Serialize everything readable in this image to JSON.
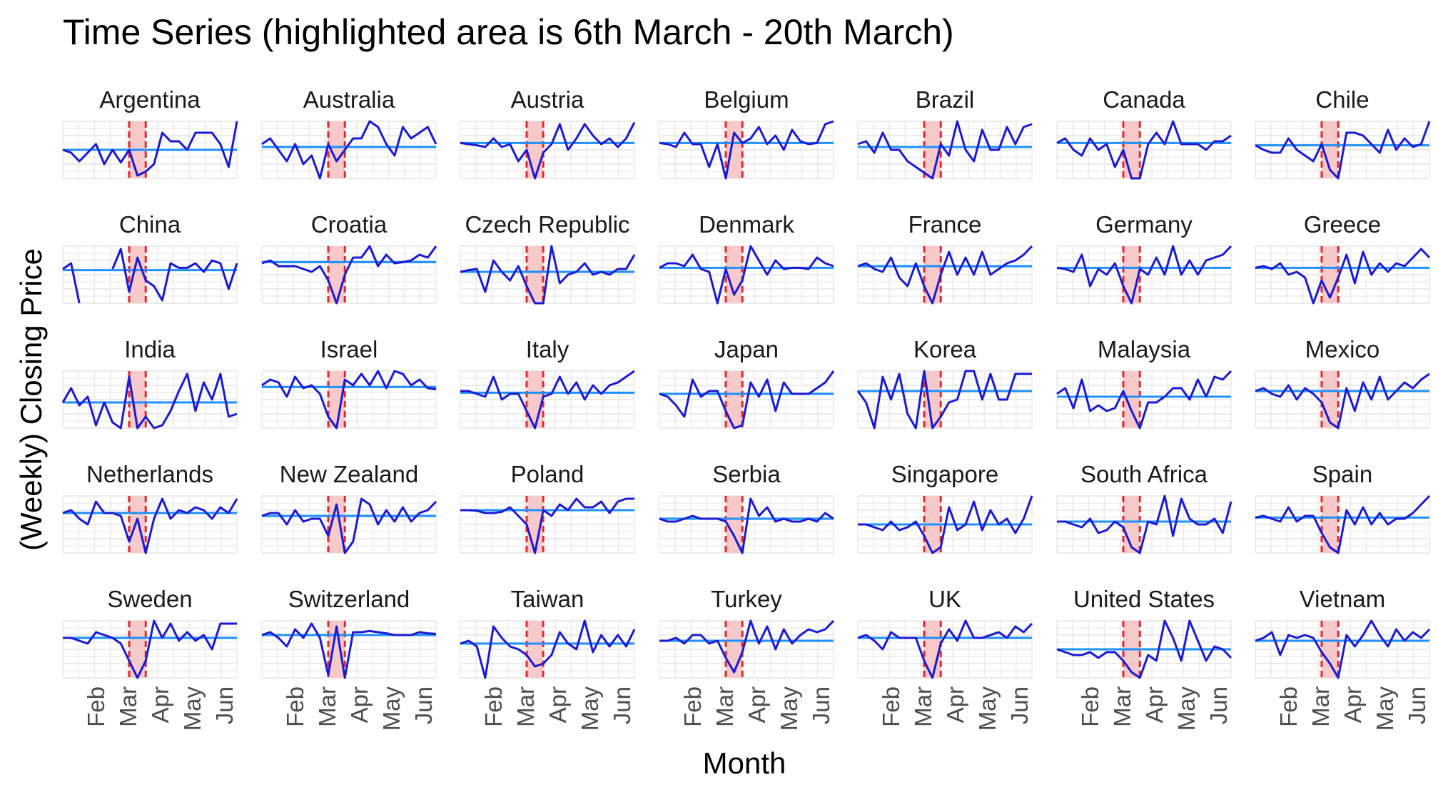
{
  "chart_data": {
    "type": "line",
    "title": "Time Series (highlighted area is 6th March - 20th March)",
    "xlabel": "Month",
    "ylabel": "(Weekly) Closing Price",
    "x_tick_labels": [
      "Feb",
      "Mar",
      "Apr",
      "May",
      "Jun"
    ],
    "x_range_weeks": [
      1,
      22
    ],
    "highlight": {
      "start": "6th March",
      "end": "20th March",
      "start_week": 9,
      "end_week": 11
    },
    "y_axis_labels_shown": false,
    "grid": true,
    "legend": "none",
    "colors": {
      "series_line": "#1a1ad4",
      "reference_line": "#1e90ff",
      "highlight_fill": "#f6c9ca",
      "highlight_border": "#e8262b",
      "grid": "#ebebeb"
    },
    "panels": [
      {
        "name": "Argentina",
        "ref": 0.5,
        "values": [
          0.5,
          0.45,
          0.3,
          0.45,
          0.6,
          0.25,
          0.5,
          0.28,
          0.5,
          0.05,
          0.12,
          0.25,
          0.8,
          0.65,
          0.65,
          0.5,
          0.8,
          0.8,
          0.8,
          0.6,
          0.2,
          1.0
        ]
      },
      {
        "name": "Australia",
        "ref": 0.55,
        "values": [
          0.6,
          0.7,
          0.5,
          0.3,
          0.6,
          0.25,
          0.4,
          0.0,
          0.6,
          0.3,
          0.5,
          0.7,
          0.7,
          1.0,
          0.9,
          0.6,
          0.4,
          0.9,
          0.7,
          0.8,
          0.9,
          0.6
        ]
      },
      {
        "name": "Austria",
        "ref": 0.62,
        "values": [
          0.62,
          0.6,
          0.58,
          0.55,
          0.7,
          0.55,
          0.6,
          0.3,
          0.5,
          0.0,
          0.45,
          0.6,
          0.95,
          0.5,
          0.7,
          0.95,
          0.75,
          0.6,
          0.7,
          0.55,
          0.7,
          0.98
        ]
      },
      {
        "name": "Belgium",
        "ref": 0.62,
        "values": [
          0.62,
          0.6,
          0.55,
          0.8,
          0.6,
          0.6,
          0.2,
          0.6,
          0.0,
          0.8,
          0.62,
          0.7,
          0.9,
          0.6,
          0.75,
          0.5,
          0.85,
          0.65,
          0.6,
          0.62,
          0.95,
          1.0
        ]
      },
      {
        "name": "Brazil",
        "ref": 0.55,
        "values": [
          0.6,
          0.65,
          0.45,
          0.8,
          0.5,
          0.5,
          0.3,
          0.2,
          0.1,
          0.0,
          0.6,
          0.4,
          1.0,
          0.5,
          0.3,
          0.85,
          0.5,
          0.5,
          0.9,
          0.6,
          0.9,
          0.95
        ]
      },
      {
        "name": "Canada",
        "ref": 0.62,
        "values": [
          0.62,
          0.7,
          0.5,
          0.4,
          0.7,
          0.5,
          0.6,
          0.2,
          0.5,
          0.0,
          0.0,
          0.6,
          0.8,
          0.6,
          1.0,
          0.6,
          0.6,
          0.6,
          0.5,
          0.65,
          0.65,
          0.75
        ]
      },
      {
        "name": "Chile",
        "ref": 0.58,
        "values": [
          0.58,
          0.5,
          0.45,
          0.45,
          0.7,
          0.5,
          0.4,
          0.3,
          0.6,
          0.15,
          0.0,
          0.8,
          0.8,
          0.75,
          0.6,
          0.45,
          0.85,
          0.5,
          0.7,
          0.55,
          0.6,
          1.0
        ]
      },
      {
        "name": "China",
        "ref": 0.58,
        "values": [
          0.6,
          0.7,
          0.0,
          null,
          null,
          null,
          0.6,
          0.95,
          0.2,
          0.8,
          0.4,
          0.3,
          0.05,
          0.7,
          0.62,
          0.62,
          0.7,
          0.55,
          0.75,
          0.7,
          0.25,
          0.7
        ]
      },
      {
        "name": "Croatia",
        "ref": 0.72,
        "values": [
          0.7,
          0.75,
          0.65,
          0.65,
          0.65,
          0.6,
          0.55,
          0.65,
          0.4,
          0.0,
          0.5,
          0.8,
          0.8,
          1.0,
          0.65,
          0.85,
          0.7,
          0.72,
          0.75,
          0.85,
          0.8,
          1.0
        ]
      },
      {
        "name": "Czech Republic",
        "ref": 0.55,
        "values": [
          0.55,
          0.58,
          0.6,
          0.2,
          0.75,
          0.55,
          0.4,
          0.65,
          0.3,
          0.0,
          0.0,
          1.0,
          0.35,
          0.5,
          0.55,
          0.7,
          0.5,
          0.55,
          0.5,
          0.6,
          0.6,
          0.85
        ]
      },
      {
        "name": "Denmark",
        "ref": 0.62,
        "values": [
          0.62,
          0.7,
          0.7,
          0.65,
          0.85,
          0.6,
          0.55,
          0.0,
          0.6,
          0.15,
          0.4,
          1.0,
          0.75,
          0.5,
          0.75,
          0.6,
          0.62,
          0.62,
          0.6,
          0.8,
          0.7,
          0.65
        ]
      },
      {
        "name": "France",
        "ref": 0.65,
        "values": [
          0.65,
          0.7,
          0.6,
          0.55,
          0.8,
          0.45,
          0.3,
          0.7,
          0.3,
          0.0,
          0.5,
          0.9,
          0.5,
          0.8,
          0.5,
          0.9,
          0.5,
          0.6,
          0.7,
          0.75,
          0.85,
          1.0
        ]
      },
      {
        "name": "Germany",
        "ref": 0.62,
        "values": [
          0.62,
          0.6,
          0.55,
          0.85,
          0.3,
          0.6,
          0.5,
          0.7,
          0.3,
          0.0,
          0.6,
          0.5,
          0.8,
          0.5,
          1.0,
          0.5,
          0.75,
          0.5,
          0.75,
          0.8,
          0.85,
          1.0
        ]
      },
      {
        "name": "Greece",
        "ref": 0.62,
        "values": [
          0.62,
          0.65,
          0.6,
          0.7,
          0.5,
          0.55,
          0.45,
          0.0,
          0.4,
          0.1,
          0.45,
          0.85,
          0.35,
          0.9,
          0.5,
          0.7,
          0.55,
          0.7,
          0.65,
          0.8,
          0.95,
          0.8
        ]
      },
      {
        "name": "India",
        "ref": 0.45,
        "values": [
          0.45,
          0.7,
          0.4,
          0.55,
          0.05,
          0.45,
          0.1,
          0.0,
          0.9,
          0.0,
          0.2,
          0.0,
          0.05,
          0.3,
          0.65,
          0.95,
          0.3,
          0.8,
          0.5,
          0.95,
          0.2,
          0.25
        ]
      },
      {
        "name": "Israel",
        "ref": 0.72,
        "values": [
          0.75,
          0.85,
          0.8,
          0.55,
          0.9,
          0.7,
          0.75,
          0.6,
          0.2,
          0.0,
          0.85,
          0.75,
          0.95,
          0.75,
          1.0,
          0.7,
          1.0,
          0.95,
          0.75,
          0.85,
          0.7,
          0.68
        ]
      },
      {
        "name": "Italy",
        "ref": 0.62,
        "values": [
          0.65,
          0.65,
          0.6,
          0.55,
          0.9,
          0.5,
          0.6,
          0.6,
          0.3,
          0.0,
          0.55,
          0.6,
          0.9,
          0.6,
          0.8,
          0.5,
          0.75,
          0.6,
          0.75,
          0.8,
          0.9,
          1.0
        ]
      },
      {
        "name": "Japan",
        "ref": 0.6,
        "values": [
          0.6,
          0.55,
          0.4,
          0.2,
          0.85,
          0.55,
          0.65,
          0.65,
          0.3,
          0.0,
          0.05,
          0.8,
          0.55,
          0.85,
          0.3,
          0.8,
          0.6,
          0.6,
          0.6,
          0.7,
          0.8,
          1.0
        ]
      },
      {
        "name": "Korea",
        "ref": 0.65,
        "values": [
          0.65,
          0.45,
          0.0,
          0.9,
          0.5,
          0.95,
          0.25,
          0.0,
          1.0,
          0.0,
          0.2,
          0.45,
          0.5,
          1.0,
          1.0,
          0.5,
          0.95,
          0.5,
          0.5,
          0.95,
          0.95,
          0.95
        ]
      },
      {
        "name": "Malaysia",
        "ref": 0.55,
        "values": [
          0.6,
          0.7,
          0.35,
          0.85,
          0.3,
          0.4,
          0.3,
          0.35,
          0.65,
          0.3,
          0.0,
          0.45,
          0.45,
          0.55,
          0.7,
          0.7,
          0.5,
          0.85,
          0.55,
          0.9,
          0.85,
          1.0
        ]
      },
      {
        "name": "Mexico",
        "ref": 0.65,
        "values": [
          0.65,
          0.7,
          0.6,
          0.55,
          0.75,
          0.5,
          0.7,
          0.6,
          0.45,
          0.1,
          0.0,
          0.7,
          0.3,
          0.8,
          0.5,
          0.9,
          0.5,
          0.65,
          0.8,
          0.7,
          0.85,
          0.95
        ]
      },
      {
        "name": "Netherlands",
        "ref": 0.7,
        "values": [
          0.7,
          0.75,
          0.6,
          0.5,
          0.9,
          0.7,
          0.7,
          0.65,
          0.2,
          0.6,
          0.0,
          0.6,
          0.95,
          0.6,
          0.75,
          0.7,
          0.8,
          0.75,
          0.6,
          0.8,
          0.7,
          0.95
        ]
      },
      {
        "name": "New Zealand",
        "ref": 0.65,
        "values": [
          0.65,
          0.7,
          0.7,
          0.5,
          0.75,
          0.55,
          0.6,
          0.6,
          0.3,
          0.85,
          0.0,
          0.2,
          0.95,
          0.85,
          0.5,
          0.75,
          0.55,
          0.8,
          0.55,
          0.7,
          0.75,
          0.9
        ]
      },
      {
        "name": "Poland",
        "ref": 0.75,
        "values": [
          0.75,
          0.75,
          0.74,
          0.7,
          0.7,
          0.72,
          0.8,
          0.65,
          0.5,
          0.0,
          0.75,
          0.65,
          0.85,
          0.75,
          0.95,
          0.8,
          0.8,
          0.9,
          0.7,
          0.9,
          0.95,
          0.95
        ]
      },
      {
        "name": "Serbia",
        "ref": 0.6,
        "values": [
          0.6,
          0.55,
          0.55,
          0.6,
          0.65,
          0.6,
          0.6,
          0.6,
          0.55,
          0.3,
          0.0,
          0.95,
          0.65,
          0.8,
          0.55,
          0.6,
          0.55,
          0.55,
          0.6,
          0.55,
          0.7,
          0.6
        ]
      },
      {
        "name": "Singapore",
        "ref": 0.5,
        "values": [
          0.5,
          0.5,
          0.45,
          0.4,
          0.55,
          0.4,
          0.45,
          0.55,
          0.3,
          0.0,
          0.1,
          0.8,
          0.4,
          0.5,
          0.9,
          0.4,
          0.75,
          0.5,
          0.6,
          0.35,
          0.6,
          1.0
        ]
      },
      {
        "name": "South Africa",
        "ref": 0.55,
        "values": [
          0.55,
          0.55,
          0.5,
          0.45,
          0.6,
          0.35,
          0.4,
          0.55,
          0.45,
          0.1,
          0.0,
          0.55,
          0.5,
          1.0,
          0.3,
          0.95,
          0.6,
          0.5,
          0.5,
          0.6,
          0.35,
          0.9
        ]
      },
      {
        "name": "Spain",
        "ref": 0.62,
        "values": [
          0.62,
          0.65,
          0.6,
          0.55,
          0.8,
          0.55,
          0.65,
          0.65,
          0.35,
          0.1,
          0.0,
          0.75,
          0.5,
          0.8,
          0.5,
          0.7,
          0.5,
          0.6,
          0.6,
          0.7,
          0.85,
          1.0
        ]
      },
      {
        "name": "Sweden",
        "ref": 0.7,
        "values": [
          0.7,
          0.7,
          0.65,
          0.6,
          0.8,
          0.75,
          0.7,
          0.6,
          0.3,
          0.0,
          0.3,
          1.0,
          0.7,
          0.95,
          0.65,
          0.8,
          0.65,
          0.75,
          0.5,
          0.95,
          0.95,
          0.95
        ]
      },
      {
        "name": "Switzerland",
        "ref": 0.75,
        "values": [
          0.75,
          0.8,
          0.7,
          0.55,
          0.85,
          0.7,
          0.95,
          0.7,
          0.05,
          0.9,
          0.0,
          0.8,
          0.8,
          0.82,
          0.8,
          0.78,
          0.75,
          0.75,
          0.75,
          0.8,
          0.78,
          0.77
        ]
      },
      {
        "name": "Taiwan",
        "ref": 0.6,
        "values": [
          0.6,
          0.65,
          0.55,
          0.0,
          0.9,
          0.7,
          0.55,
          0.5,
          0.4,
          0.2,
          0.25,
          0.4,
          0.8,
          0.6,
          0.5,
          1.0,
          0.45,
          0.75,
          0.55,
          0.75,
          0.55,
          0.85
        ]
      },
      {
        "name": "Turkey",
        "ref": 0.65,
        "values": [
          0.65,
          0.65,
          0.7,
          0.6,
          0.75,
          0.75,
          0.6,
          0.65,
          0.35,
          0.1,
          0.45,
          1.0,
          0.6,
          0.9,
          0.5,
          0.85,
          0.6,
          0.75,
          0.85,
          0.8,
          0.85,
          1.0
        ]
      },
      {
        "name": "UK",
        "ref": 0.7,
        "values": [
          0.7,
          0.75,
          0.65,
          0.5,
          0.8,
          0.7,
          0.7,
          0.7,
          0.3,
          0.0,
          0.6,
          0.85,
          0.65,
          1.0,
          0.7,
          0.7,
          0.75,
          0.8,
          0.7,
          0.9,
          0.8,
          0.95
        ]
      },
      {
        "name": "United States",
        "ref": 0.5,
        "values": [
          0.5,
          0.45,
          0.4,
          0.4,
          0.45,
          0.35,
          0.45,
          0.45,
          0.3,
          0.1,
          0.0,
          0.4,
          0.3,
          1.0,
          0.7,
          0.3,
          1.0,
          0.65,
          0.3,
          0.55,
          0.5,
          0.35
        ]
      },
      {
        "name": "Vietnam",
        "ref": 0.65,
        "values": [
          0.65,
          0.7,
          0.8,
          0.4,
          0.75,
          0.7,
          0.75,
          0.7,
          0.45,
          0.25,
          0.0,
          0.75,
          0.55,
          0.75,
          1.0,
          0.75,
          0.55,
          0.85,
          0.65,
          0.8,
          0.7,
          0.85
        ]
      }
    ]
  }
}
